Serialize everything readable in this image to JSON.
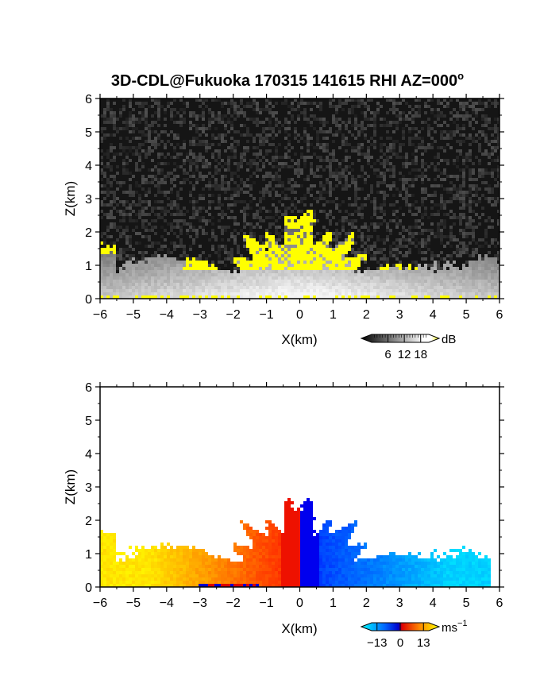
{
  "title": "3D-CDL@Fukuoka 170315 141615 RHI AZ=000",
  "title_superscript": "o",
  "chart_data": [
    {
      "type": "heatmap",
      "panel": "top",
      "quantity": "backscatter intensity",
      "xlabel": "X(km)",
      "ylabel": "Z(km)",
      "xlim": [
        -6,
        6
      ],
      "ylim": [
        0,
        6
      ],
      "x_ticks": [
        "−6",
        "−5",
        "−4",
        "−3",
        "−2",
        "−1",
        "0",
        "1",
        "2",
        "3",
        "4",
        "5",
        "6"
      ],
      "y_ticks": [
        "0",
        "1",
        "2",
        "3",
        "4",
        "5",
        "6"
      ],
      "colorbar": {
        "unit": "dB",
        "tick_labels": [
          "6",
          "12",
          "18"
        ],
        "ticks": [
          6,
          12,
          18
        ],
        "range": [
          0,
          21
        ],
        "colors": [
          "#000000",
          "#ffffff",
          "#ffff00"
        ]
      },
      "description_values": {
        "noise_floor_db": 4,
        "boundary_layer_top_km": 1.0,
        "max_echo_height_km": 2.4,
        "high_echo_color": "#ffff00"
      }
    },
    {
      "type": "heatmap",
      "panel": "bottom",
      "quantity": "Doppler velocity",
      "xlabel": "X(km)",
      "ylabel": "Z(km)",
      "xlim": [
        -6,
        6
      ],
      "ylim": [
        0,
        6
      ],
      "x_ticks": [
        "−6",
        "−5",
        "−4",
        "−3",
        "−2",
        "−1",
        "0",
        "1",
        "2",
        "3",
        "4",
        "5",
        "6"
      ],
      "y_ticks": [
        "0",
        "1",
        "2",
        "3",
        "4",
        "5",
        "6"
      ],
      "colorbar": {
        "unit": "ms",
        "unit_superscript": "−1",
        "tick_labels": [
          "−13",
          "0",
          "13"
        ],
        "ticks": [
          -13,
          0,
          13
        ],
        "range": [
          -16,
          16
        ],
        "colors": [
          "#00ffff",
          "#0044ff",
          "#0000cc",
          "#ff0000",
          "#ff8800",
          "#ffff00"
        ]
      },
      "description_values": {
        "negative_side_color": "#0000ff",
        "positive_side_color": "#ff0000",
        "max_echo_height_km": 2.5
      }
    }
  ]
}
